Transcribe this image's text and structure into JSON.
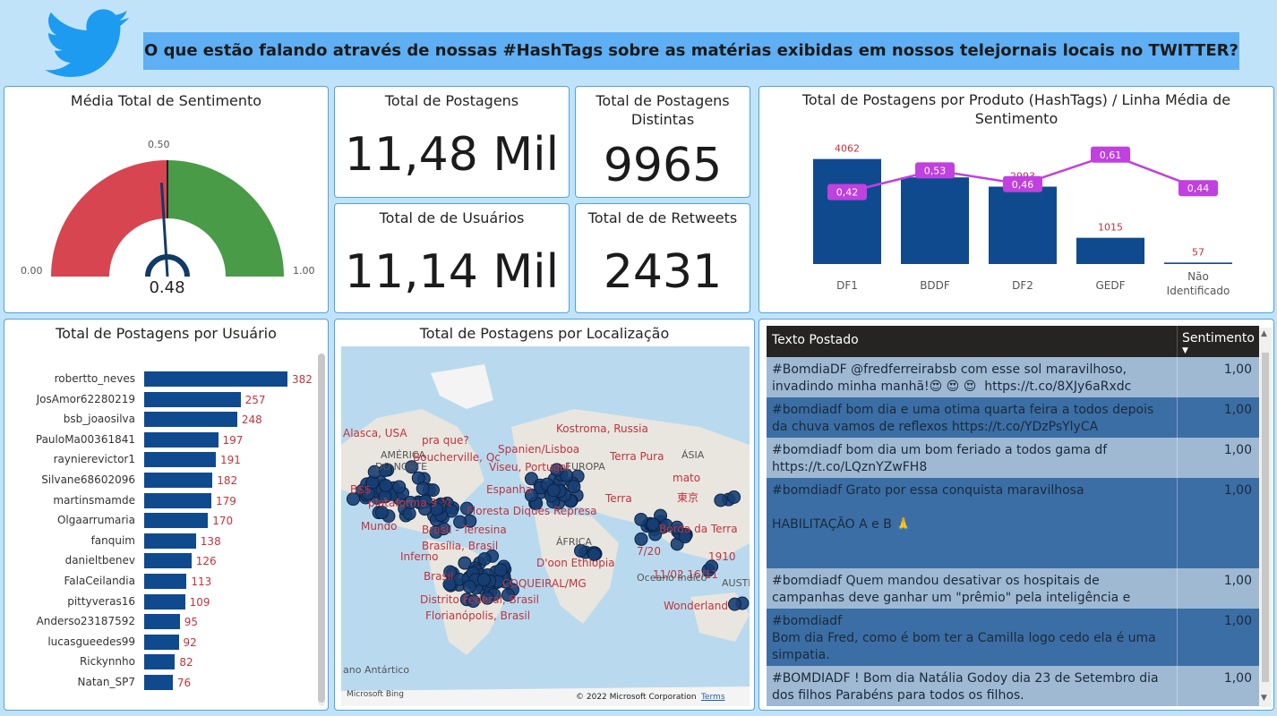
{
  "banner": {
    "title": "O que estão falando através de nossas #HashTags sobre as matérias exibidas em nossos telejornais locais no TWITTER?"
  },
  "gauge": {
    "title": "Média Total de Sentimento",
    "value": 0.48,
    "value_label": "0.48",
    "min_label": "0.00",
    "max_label": "1.00",
    "target_label": "0.50",
    "colors": {
      "low": "#d64550",
      "high": "#4a9b48"
    }
  },
  "kpis": {
    "posts": {
      "title": "Total de Postagens",
      "value": "11,48 Mil"
    },
    "distinct": {
      "title": "Total de Postagens Distintas",
      "value": "9965"
    },
    "users": {
      "title": "Total de de Usuários",
      "value": "11,14 Mil"
    },
    "retweets": {
      "title": "Total de de Retweets",
      "value": "2431"
    }
  },
  "product_chart_title": "Total de Postagens por Produto (HashTags) / Linha Média de Sentimento",
  "users_chart_title": "Total de Postagens por Usuário",
  "map": {
    "title": "Total de Postagens por Localização",
    "labels": [
      "Alasca, USA",
      "pra que?",
      "Boucherville, Qc",
      "AMÉRICA",
      "DO NORTE",
      "B$$",
      "plataforma 9 ¾",
      "Mundo",
      "Brasil - Teresina",
      "Brasília, Brasil",
      "Inferno",
      "Brasil",
      "Distrito Federal, Brasil",
      "Florianópolis, Brasil",
      "COQUEIRAL/MG",
      "Spanien/Lisboa",
      "Viseu, Portugal",
      "EUROPA",
      "Espanha",
      "Floresta Diques Represa",
      "Kostroma, Russia",
      "Terra Pura",
      "ÁSIA",
      "mato",
      "東京",
      "Terra",
      "ÁFRICA",
      "D'oon Ethiopia",
      "Borda da Terra",
      "7/20",
      "11/02 16/11",
      "1910",
      "Oceano Índico",
      "AUSTR",
      "Wonderland",
      "ano Antártico"
    ],
    "attribution": "© 2022 Microsoft Corporation",
    "terms": "Terms",
    "bing": "Microsoft Bing"
  },
  "table": {
    "col_text": "Texto Postado",
    "col_sent": "Sentimento",
    "rows": [
      {
        "text": "#BomdiaDF @fredferreirabsb com esse sol maravilhoso, invadindo minha manhã!😍 😍 😍  https://t.co/8XJy6aRxdc",
        "sent": "1,00"
      },
      {
        "text": "#bomdiadf bom dia e uma otima quarta feira a todos depois da chuva vamos de reflexos https://t.co/YDzPsYlyCA",
        "sent": "1,00"
      },
      {
        "text": "#bomdiadf bom dia um bom feriado a todos gama df https://t.co/LQznYZwFH8",
        "sent": "1,00"
      },
      {
        "text": "#bomdiadf Grato por essa conquista maravilhosa\n\nHABILITAÇÃO A e B 🙏\n\n\nApé e Bicicleta",
        "sent": "1,00"
      },
      {
        "text": "#bomdiadf Quem mandou desativar os hospitais de campanhas deve ganhar um \"prêmio\" pela inteligência e sensibilidade.",
        "sent": "1,00"
      },
      {
        "text": "#bomdiadf\nBom dia Fred, como é bom ter a Camilla logo cedo ela é uma simpatia.",
        "sent": "1,00"
      },
      {
        "text": "#BOMDIADF ! Bom dia Natália Godoy dia 23 de Setembro dia dos filhos Parabéns para todos os filhos.",
        "sent": "1,00"
      }
    ]
  },
  "chart_data": [
    {
      "type": "bar",
      "title": "Total de Postagens por Produto (HashTags) / Linha Média de Sentimento",
      "categories": [
        "DF1",
        "BDDF",
        "DF2",
        "GEDF",
        "Não Identificado"
      ],
      "series": [
        {
          "type": "bar",
          "values": [
            4062,
            3351,
            2993,
            1015,
            57
          ],
          "color": "#104a8e"
        },
        {
          "type": "line",
          "values": [
            0.42,
            0.53,
            0.46,
            0.61,
            0.44
          ],
          "labels": [
            "0,42",
            "0,53",
            "0,46",
            "0,61",
            "0,44"
          ],
          "color": "#c040e0"
        }
      ]
    },
    {
      "type": "bar",
      "orientation": "horizontal",
      "title": "Total de Postagens por Usuário",
      "categories": [
        "robertto_neves",
        "JosAmor62280219",
        "bsb_joaosilva",
        "PauloMa00361841",
        "raynierevictor1",
        "Silvane68602096",
        "martinsmamde",
        "Olgaarrumaria",
        "fanquim",
        "danieltbenev",
        "FalaCeilandia",
        "pittyveras16",
        "Anderso23187592",
        "lucasgueedes99",
        "Rickynnho",
        "Natan_SP7"
      ],
      "values": [
        382,
        257,
        248,
        197,
        191,
        182,
        179,
        170,
        138,
        126,
        113,
        109,
        95,
        92,
        82,
        76
      ],
      "color": "#104a8e"
    }
  ]
}
